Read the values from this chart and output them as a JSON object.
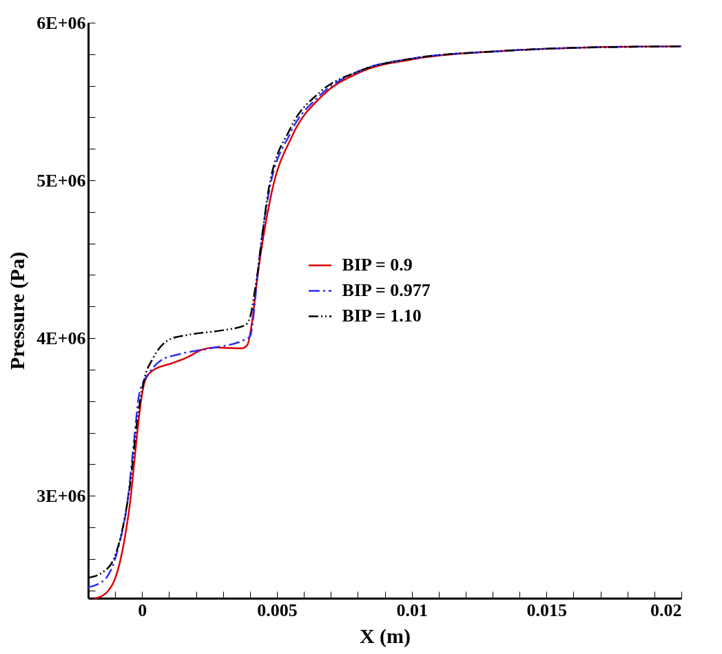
{
  "chart_data": {
    "type": "line",
    "xlabel": "X (m)",
    "ylabel": "Pressure (Pa)",
    "xlim": [
      -0.002,
      0.02
    ],
    "ylim": [
      2350000,
      6000000
    ],
    "xticks": [
      {
        "value": -0.001,
        "label": null
      },
      0,
      {
        "value": 0.001,
        "label": null
      },
      {
        "value": 0.002,
        "label": null
      },
      {
        "value": 0.003,
        "label": null
      },
      {
        "value": 0.004,
        "label": null
      },
      0.005,
      {
        "value": 0.006,
        "label": null
      },
      {
        "value": 0.007,
        "label": null
      },
      {
        "value": 0.008,
        "label": null
      },
      {
        "value": 0.009,
        "label": null
      },
      0.01,
      {
        "value": 0.011,
        "label": null
      },
      {
        "value": 0.012,
        "label": null
      },
      {
        "value": 0.013,
        "label": null
      },
      {
        "value": 0.014,
        "label": null
      },
      0.015,
      {
        "value": 0.016,
        "label": null
      },
      {
        "value": 0.017,
        "label": null
      },
      {
        "value": 0.018,
        "label": null
      },
      {
        "value": 0.019,
        "label": null
      },
      0.02
    ],
    "yticks": [
      {
        "value": 2400000,
        "label": null
      },
      {
        "value": 2600000,
        "label": null
      },
      {
        "value": 2800000,
        "label": null
      },
      {
        "value": 3000000,
        "label": "3E+06"
      },
      {
        "value": 3200000,
        "label": null
      },
      {
        "value": 3400000,
        "label": null
      },
      {
        "value": 3600000,
        "label": null
      },
      {
        "value": 3800000,
        "label": null
      },
      {
        "value": 4000000,
        "label": "4E+06"
      },
      {
        "value": 4200000,
        "label": null
      },
      {
        "value": 4400000,
        "label": null
      },
      {
        "value": 4600000,
        "label": null
      },
      {
        "value": 4800000,
        "label": null
      },
      {
        "value": 5000000,
        "label": "5E+06"
      },
      {
        "value": 5200000,
        "label": null
      },
      {
        "value": 5400000,
        "label": null
      },
      {
        "value": 5600000,
        "label": null
      },
      {
        "value": 5800000,
        "label": null
      },
      {
        "value": 6000000,
        "label": "6E+06"
      }
    ],
    "grid": false,
    "legend": "right",
    "marker": "none",
    "series": [
      {
        "name": "BIP = 0.9",
        "color": "#dd0000",
        "line_style": "solid",
        "x": [
          -0.00177,
          -0.00164,
          -0.00113,
          -0.00079,
          -0.00056,
          -0.00044,
          -0.00031,
          -0.00018,
          -5e-05,
          0.0001,
          0.0004,
          0.0011,
          0.0017,
          0.0022,
          0.0027,
          0.0037,
          0.0039,
          0.0041,
          0.00425,
          0.0048,
          0.00556,
          0.0067,
          0.008,
          0.0101,
          0.0133,
          0.0165,
          0.02
        ],
        "values": [
          2350000,
          2353000,
          2428000,
          2603000,
          2820000,
          2965000,
          3180000,
          3400000,
          3590000,
          3725000,
          3795000,
          3840000,
          3880000,
          3925000,
          3940000,
          3935000,
          3955000,
          4130000,
          4350000,
          4920000,
          5280000,
          5540000,
          5680000,
          5770000,
          5820000,
          5843000,
          5850000
        ]
      },
      {
        "name": "BIP = 0.977",
        "color": "#2a2aff",
        "line_style": "dashed",
        "x": [
          -0.002,
          -0.00138,
          -0.00087,
          -0.00054,
          -0.00031,
          -0.0001,
          0.00033,
          0.00067,
          0.00143,
          0.0022,
          0.0027,
          0.0038,
          0.004,
          0.00417,
          0.00425,
          0.0047,
          0.0055,
          0.0066,
          0.008,
          0.0101,
          0.0133,
          0.0165,
          0.02
        ],
        "values": [
          2420000,
          2470000,
          2680000,
          2965000,
          3330000,
          3650000,
          3795000,
          3855000,
          3900000,
          3925000,
          3940000,
          3990000,
          4010000,
          4200000,
          4350000,
          4920000,
          5300000,
          5540000,
          5690000,
          5775000,
          5820000,
          5843000,
          5850000
        ]
      },
      {
        "name": "BIP = 1.10",
        "color": "#000000",
        "line_style": "dotted",
        "x": [
          -0.002,
          -0.00146,
          -0.00105,
          -0.00069,
          -0.00044,
          -0.00018,
          8e-05,
          0.0004,
          0.001,
          0.0017,
          0.003,
          0.0038,
          0.004,
          0.0042,
          0.0047,
          0.0055,
          0.0066,
          0.008,
          0.0101,
          0.0133,
          0.0165,
          0.02
        ],
        "values": [
          2480000,
          2515000,
          2600000,
          2820000,
          3080000,
          3480000,
          3740000,
          3870000,
          3990000,
          4020000,
          4050000,
          4080000,
          4130000,
          4320000,
          4950000,
          5330000,
          5560000,
          5690000,
          5775000,
          5820000,
          5843000,
          5850000
        ]
      }
    ]
  }
}
